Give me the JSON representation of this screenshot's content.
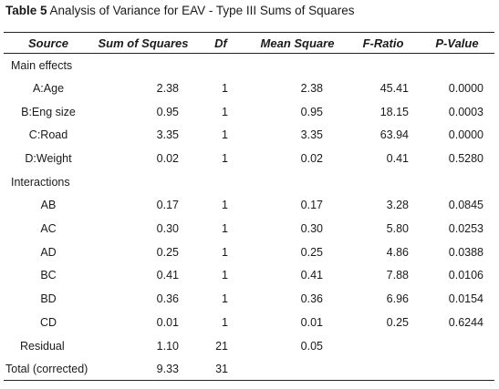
{
  "caption": {
    "number": "Table 5",
    "text": "Analysis of Variance for EAV - Type III Sums of Squares"
  },
  "headers": [
    "Source",
    "Sum of Squares",
    "Df",
    "Mean Square",
    "F-Ratio",
    "P-Value"
  ],
  "sections": {
    "main_effects": "Main effects",
    "interactions": "Interactions"
  },
  "main_rows": [
    [
      "A:Age",
      "2.38",
      "1",
      "2.38",
      "45.41",
      "0.0000"
    ],
    [
      "B:Eng size",
      "0.95",
      "1",
      "0.95",
      "18.15",
      "0.0003"
    ],
    [
      "C:Road",
      "3.35",
      "1",
      "3.35",
      "63.94",
      "0.0000"
    ],
    [
      "D:Weight",
      "0.02",
      "1",
      "0.02",
      "0.41",
      "0.5280"
    ]
  ],
  "interaction_rows": [
    [
      "AB",
      "0.17",
      "1",
      "0.17",
      "3.28",
      "0.0845"
    ],
    [
      "AC",
      "0.30",
      "1",
      "0.30",
      "5.80",
      "0.0253"
    ],
    [
      "AD",
      "0.25",
      "1",
      "0.25",
      "4.86",
      "0.0388"
    ],
    [
      "BC",
      "0.41",
      "1",
      "0.41",
      "7.88",
      "0.0106"
    ],
    [
      "BD",
      "0.36",
      "1",
      "0.36",
      "6.96",
      "0.0154"
    ],
    [
      "CD",
      "0.01",
      "1",
      "0.01",
      "0.25",
      "0.6244"
    ]
  ],
  "residual": [
    "Residual",
    "1.10",
    "21",
    "0.05"
  ],
  "total": [
    "Total (corrected)",
    "9.33",
    "31"
  ]
}
